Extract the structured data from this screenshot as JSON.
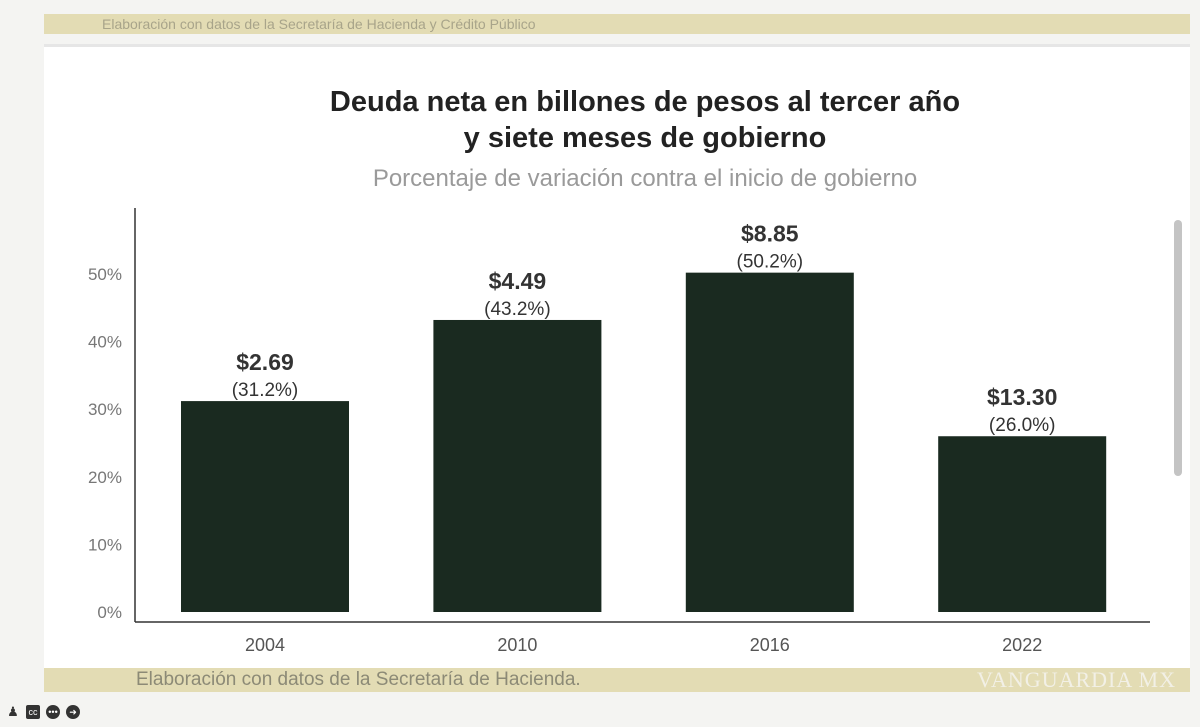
{
  "top_note": "Elaboración con datos de la Secretaría de Hacienda y Crédito Público",
  "bottom_note": "Elaboración con datos de la Secretaría de Hacienda.",
  "watermark": "VANGUARDIA MX",
  "controls": [
    "person-icon",
    "cc-icon",
    "more-icon",
    "next-icon"
  ],
  "colors": {
    "bar": "#1a2a20",
    "band": "#e3dcb4"
  },
  "chart_data": {
    "type": "bar",
    "title": "Deuda neta en billones de pesos al tercer año y siete meses de gobierno",
    "title_lines": [
      "Deuda neta en billones de pesos al tercer año",
      "y siete meses de gobierno"
    ],
    "subtitle": "Porcentaje de variación contra el inicio de gobierno",
    "categories": [
      "2004",
      "2010",
      "2016",
      "2022"
    ],
    "values": [
      31.2,
      43.2,
      50.2,
      26.0
    ],
    "amount_labels": [
      "$2.69",
      "$4.49",
      "$8.85",
      "$13.30"
    ],
    "percent_labels": [
      "(31.2%)",
      "(43.2%)",
      "(50.2%)",
      "(26.0%)"
    ],
    "yticks": [
      "0%",
      "10%",
      "20%",
      "30%",
      "40%",
      "50%"
    ],
    "ylim": [
      0,
      50
    ],
    "grid": false
  }
}
